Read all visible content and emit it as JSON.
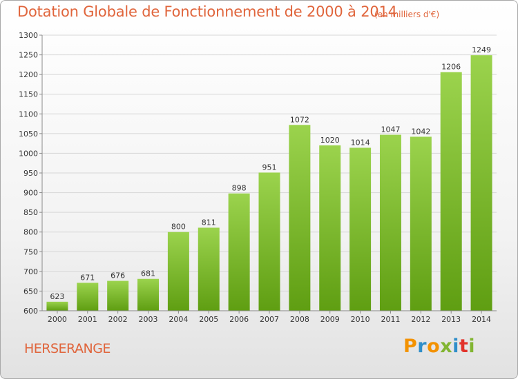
{
  "title": "Dotation Globale de Fonctionnement de 2000 à 2014",
  "subtitle": "(en milliers d'€)",
  "commune": "HERSERANGE",
  "logo": {
    "text": "Proxiti",
    "letter_colors": [
      "#f39200",
      "#2f8ec9",
      "#f39200",
      "#82b532",
      "#2f8ec9",
      "#e2322a",
      "#82b532"
    ]
  },
  "colors": {
    "title": "#e0653c",
    "bar_light": "#9bd34d",
    "bar_dark": "#5f9e12",
    "grid": "#d6d6d6",
    "axis": "#8a8a8a"
  },
  "chart_data": {
    "type": "bar",
    "categories": [
      "2000",
      "2001",
      "2002",
      "2003",
      "2004",
      "2005",
      "2006",
      "2007",
      "2008",
      "2009",
      "2010",
      "2011",
      "2012",
      "2013",
      "2014"
    ],
    "values": [
      623,
      671,
      676,
      681,
      800,
      811,
      898,
      951,
      1072,
      1020,
      1014,
      1047,
      1042,
      1206,
      1249
    ],
    "ylim": [
      600,
      1300
    ],
    "yticks": [
      600,
      650,
      700,
      750,
      800,
      850,
      900,
      950,
      1000,
      1050,
      1100,
      1150,
      1200,
      1250,
      1300
    ],
    "grid": true,
    "show_data_labels": true
  }
}
